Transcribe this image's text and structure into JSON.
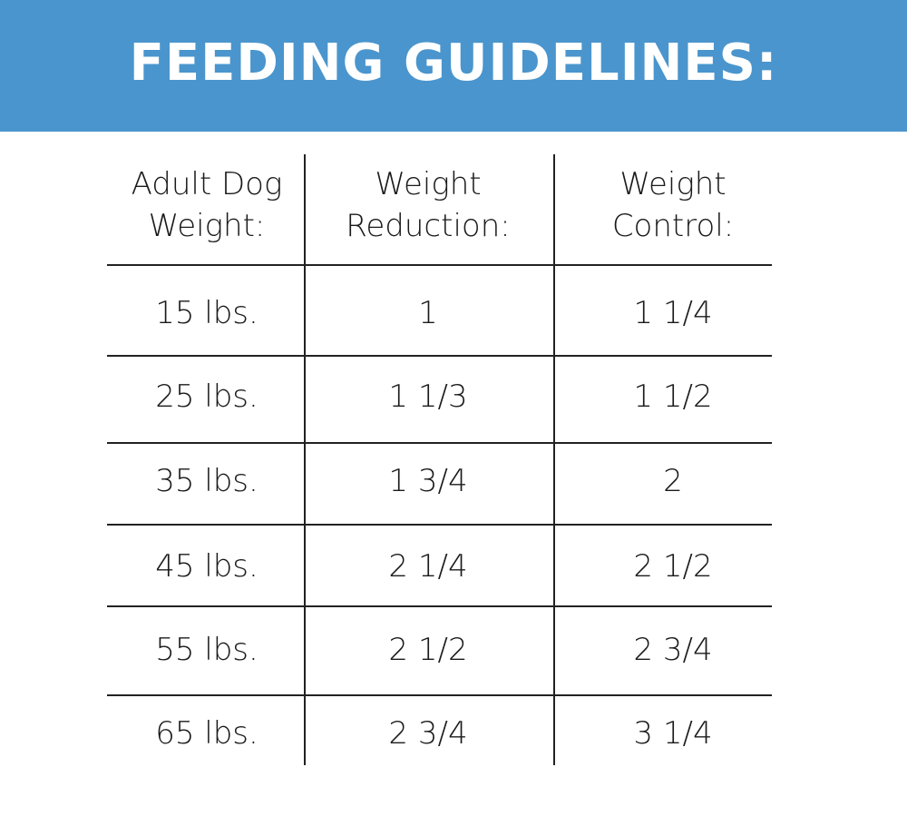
{
  "header": {
    "title": "FEEDING GUIDELINES:"
  },
  "table": {
    "columns": [
      "Adult Dog\nWeight:",
      "Weight\nReduction:",
      "Weight\nControl:"
    ],
    "rows": [
      [
        "15 lbs.",
        "1",
        "1 1/4"
      ],
      [
        "25 lbs.",
        "1 1/3",
        "1 1/2"
      ],
      [
        "35 lbs.",
        "1 3/4",
        "2"
      ],
      [
        "45 lbs.",
        "2 1/4",
        "2 1/2"
      ],
      [
        "55 lbs.",
        "2 1/2",
        "2 3/4"
      ],
      [
        "65 lbs.",
        "2 3/4",
        "3 1/4"
      ]
    ]
  }
}
